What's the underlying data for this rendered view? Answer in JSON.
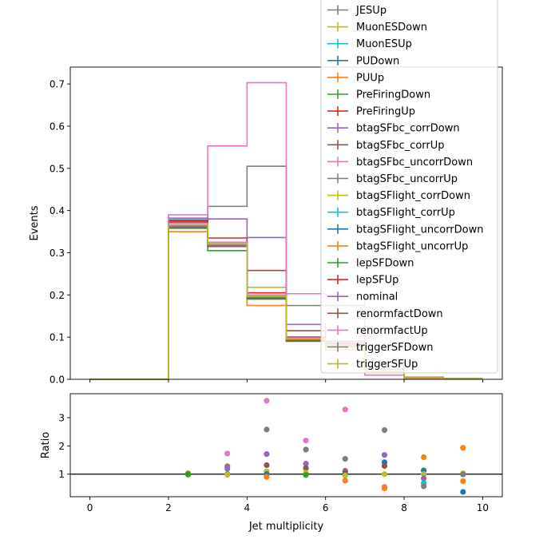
{
  "chart_data": [
    {
      "type": "line",
      "subtype": "step-histogram",
      "title": "",
      "xlabel": "",
      "ylabel": "Events",
      "xlim": [
        -0.5,
        10.5
      ],
      "ylim": [
        0,
        0.74
      ],
      "yticks": [
        "0.0",
        "0.1",
        "0.2",
        "0.3",
        "0.4",
        "0.5",
        "0.6",
        "0.7"
      ],
      "legend_position": "top-right",
      "bin_edges": [
        0,
        1,
        2,
        3,
        4,
        5,
        6,
        7,
        8,
        9,
        10
      ],
      "series": [
        {
          "name": "JESUp",
          "color": "#7f7f7f",
          "values": [
            0,
            0,
            0.37,
            0.41,
            0.505,
            0.175,
            0.175,
            0.04,
            0.005,
            0.002
          ]
        },
        {
          "name": "MuonESDown",
          "color": "#bcbd22",
          "values": [
            0,
            0,
            0.36,
            0.32,
            0.218,
            0.1,
            0.08,
            0.02,
            0.003,
            0.001
          ]
        },
        {
          "name": "MuonESUp",
          "color": "#17becf",
          "values": [
            0,
            0,
            0.365,
            0.32,
            0.195,
            0.095,
            0.08,
            0.02,
            0.003,
            0.001
          ]
        },
        {
          "name": "PUDown",
          "color": "#1f77b4",
          "values": [
            0,
            0,
            0.378,
            0.325,
            0.2,
            0.1,
            0.085,
            0.02,
            0.003,
            0.001
          ]
        },
        {
          "name": "PUUp",
          "color": "#ff7f0e",
          "values": [
            0,
            0,
            0.35,
            0.315,
            0.175,
            0.092,
            0.07,
            0.018,
            0.004,
            0.002
          ]
        },
        {
          "name": "PreFiringDown",
          "color": "#2ca02c",
          "values": [
            0,
            0,
            0.36,
            0.305,
            0.19,
            0.09,
            0.08,
            0.02,
            0.003,
            0.001
          ]
        },
        {
          "name": "PreFiringUp",
          "color": "#d62728",
          "values": [
            0,
            0,
            0.375,
            0.335,
            0.205,
            0.1,
            0.085,
            0.02,
            0.003,
            0.001
          ]
        },
        {
          "name": "btagSFbc_corrDown",
          "color": "#9467bd",
          "values": [
            0,
            0,
            0.382,
            0.38,
            0.336,
            0.13,
            0.09,
            0.025,
            0.003,
            0.001
          ]
        },
        {
          "name": "btagSFbc_corrUp",
          "color": "#8c564b",
          "values": [
            0,
            0,
            0.372,
            0.325,
            0.258,
            0.115,
            0.09,
            0.025,
            0.003,
            0.001
          ]
        },
        {
          "name": "btagSFbc_uncorrDown",
          "color": "#e377c2",
          "values": [
            0,
            0,
            0.39,
            0.553,
            0.703,
            0.203,
            0.2,
            0.01,
            0.003,
            0.001
          ]
        },
        {
          "name": "btagSFbc_uncorrUp",
          "color": "#7f7f7f",
          "values": [
            0,
            0,
            0.365,
            0.318,
            0.195,
            0.095,
            0.08,
            0.02,
            0.003,
            0.001
          ]
        },
        {
          "name": "btagSFlight_corrDown",
          "color": "#bcbd22",
          "values": [
            0,
            0,
            0.36,
            0.318,
            0.195,
            0.095,
            0.08,
            0.02,
            0.003,
            0.001
          ]
        },
        {
          "name": "btagSFlight_corrUp",
          "color": "#17becf",
          "values": [
            0,
            0,
            0.362,
            0.318,
            0.195,
            0.095,
            0.08,
            0.02,
            0.003,
            0.001
          ]
        },
        {
          "name": "btagSFlight_uncorrDown",
          "color": "#1f77b4",
          "values": [
            0,
            0,
            0.365,
            0.32,
            0.196,
            0.095,
            0.08,
            0.02,
            0.003,
            0.001
          ]
        },
        {
          "name": "btagSFlight_uncorrUp",
          "color": "#ff7f0e",
          "values": [
            0,
            0,
            0.36,
            0.318,
            0.194,
            0.095,
            0.08,
            0.02,
            0.003,
            0.001
          ]
        },
        {
          "name": "lepSFDown",
          "color": "#2ca02c",
          "values": [
            0,
            0,
            0.358,
            0.315,
            0.192,
            0.092,
            0.078,
            0.02,
            0.003,
            0.001
          ]
        },
        {
          "name": "lepSFUp",
          "color": "#d62728",
          "values": [
            0,
            0,
            0.37,
            0.325,
            0.2,
            0.098,
            0.082,
            0.02,
            0.003,
            0.001
          ]
        },
        {
          "name": "nominal",
          "color": "#9467bd",
          "values": [
            0,
            0,
            0.365,
            0.32,
            0.196,
            0.095,
            0.08,
            0.02,
            0.003,
            0.001
          ]
        },
        {
          "name": "renormfactDown",
          "color": "#8c564b",
          "values": [
            0,
            0,
            0.36,
            0.315,
            0.192,
            0.092,
            0.078,
            0.02,
            0.003,
            0.001
          ]
        },
        {
          "name": "renormfactUp",
          "color": "#e377c2",
          "values": [
            0,
            0,
            0.37,
            0.325,
            0.2,
            0.098,
            0.082,
            0.02,
            0.003,
            0.001
          ]
        },
        {
          "name": "triggerSFDown",
          "color": "#7f7f7f",
          "values": [
            0,
            0,
            0.362,
            0.318,
            0.195,
            0.095,
            0.08,
            0.02,
            0.003,
            0.001
          ]
        },
        {
          "name": "triggerSFUp",
          "color": "#bcbd22",
          "values": [
            0,
            0,
            0.366,
            0.321,
            0.197,
            0.096,
            0.081,
            0.02,
            0.003,
            0.001
          ]
        }
      ]
    },
    {
      "type": "scatter",
      "title": "",
      "xlabel": "Jet multiplicity",
      "ylabel": "Ratio",
      "xlim": [
        -0.5,
        10.5
      ],
      "ylim": [
        0.2,
        3.85
      ],
      "xticks": [
        "0",
        "2",
        "4",
        "6",
        "8",
        "10"
      ],
      "yticks": [
        "1",
        "2",
        "3"
      ],
      "reference_line": 1,
      "points": [
        {
          "x": 2.5,
          "y": 1.03,
          "color": "#ff7f0e"
        },
        {
          "x": 2.5,
          "y": 0.97,
          "color": "#bcbd22"
        },
        {
          "x": 2.5,
          "y": 1.0,
          "color": "#2ca02c"
        },
        {
          "x": 3.5,
          "y": 1.73,
          "color": "#e377c2"
        },
        {
          "x": 3.5,
          "y": 1.28,
          "color": "#7f7f7f"
        },
        {
          "x": 3.5,
          "y": 1.19,
          "color": "#9467bd"
        },
        {
          "x": 3.5,
          "y": 1.0,
          "color": "#2ca02c"
        },
        {
          "x": 3.5,
          "y": 0.98,
          "color": "#bcbd22"
        },
        {
          "x": 4.5,
          "y": 3.6,
          "color": "#e377c2"
        },
        {
          "x": 4.5,
          "y": 2.58,
          "color": "#7f7f7f"
        },
        {
          "x": 4.5,
          "y": 1.71,
          "color": "#9467bd"
        },
        {
          "x": 4.5,
          "y": 1.32,
          "color": "#8c564b"
        },
        {
          "x": 4.5,
          "y": 1.1,
          "color": "#bcbd22"
        },
        {
          "x": 4.5,
          "y": 1.0,
          "color": "#1f77b4"
        },
        {
          "x": 4.5,
          "y": 0.9,
          "color": "#ff7f0e"
        },
        {
          "x": 5.5,
          "y": 2.19,
          "color": "#e377c2"
        },
        {
          "x": 5.5,
          "y": 1.87,
          "color": "#7f7f7f"
        },
        {
          "x": 5.5,
          "y": 1.37,
          "color": "#9467bd"
        },
        {
          "x": 5.5,
          "y": 1.21,
          "color": "#8c564b"
        },
        {
          "x": 5.5,
          "y": 1.05,
          "color": "#bcbd22"
        },
        {
          "x": 5.5,
          "y": 0.97,
          "color": "#2ca02c"
        },
        {
          "x": 6.5,
          "y": 3.29,
          "color": "#e377c2"
        },
        {
          "x": 6.5,
          "y": 1.54,
          "color": "#7f7f7f"
        },
        {
          "x": 6.5,
          "y": 1.12,
          "color": "#9467bd"
        },
        {
          "x": 6.5,
          "y": 1.05,
          "color": "#8c564b"
        },
        {
          "x": 6.5,
          "y": 0.95,
          "color": "#bcbd22"
        },
        {
          "x": 6.5,
          "y": 0.77,
          "color": "#ff7f0e"
        },
        {
          "x": 7.5,
          "y": 2.56,
          "color": "#7f7f7f"
        },
        {
          "x": 7.5,
          "y": 1.68,
          "color": "#9467bd"
        },
        {
          "x": 7.5,
          "y": 1.42,
          "color": "#1f77b4"
        },
        {
          "x": 7.5,
          "y": 1.29,
          "color": "#8c564b"
        },
        {
          "x": 7.5,
          "y": 1.0,
          "color": "#bcbd22"
        },
        {
          "x": 7.5,
          "y": 0.55,
          "color": "#e377c2"
        },
        {
          "x": 7.5,
          "y": 0.5,
          "color": "#ff7f0e"
        },
        {
          "x": 8.5,
          "y": 1.6,
          "color": "#ff7f0e"
        },
        {
          "x": 8.5,
          "y": 1.13,
          "color": "#1f77b4"
        },
        {
          "x": 8.5,
          "y": 1.0,
          "color": "#bcbd22"
        },
        {
          "x": 8.5,
          "y": 0.85,
          "color": "#9467bd"
        },
        {
          "x": 8.5,
          "y": 0.68,
          "color": "#17becf"
        },
        {
          "x": 8.5,
          "y": 0.57,
          "color": "#7f7f7f"
        },
        {
          "x": 9.5,
          "y": 1.93,
          "color": "#ff7f0e"
        },
        {
          "x": 9.5,
          "y": 1.03,
          "color": "#bcbd22"
        },
        {
          "x": 9.5,
          "y": 0.99,
          "color": "#7f7f7f"
        },
        {
          "x": 9.5,
          "y": 0.75,
          "color": "#ff7f0e"
        },
        {
          "x": 9.5,
          "y": 0.37,
          "color": "#1f77b4"
        }
      ]
    }
  ]
}
